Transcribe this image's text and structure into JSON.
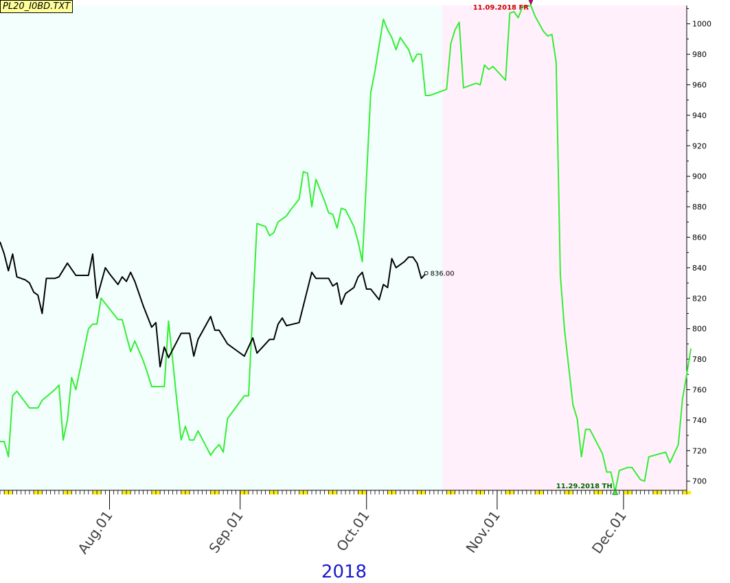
{
  "badge_text": "PL20_I0BD.TXT",
  "year_label": "2018",
  "colors": {
    "region_past": "#f3fffd",
    "region_future": "#fff0fb",
    "green_series": "#33ee33",
    "black_series": "#000000",
    "max_marker": "#cc0066",
    "week_tick": "#ffee00"
  },
  "chart_data": {
    "type": "line",
    "x_label": "",
    "y_label": "",
    "ylim": [
      694,
      1012
    ],
    "y_ticks": [
      700,
      720,
      740,
      760,
      780,
      800,
      820,
      840,
      860,
      880,
      900,
      920,
      940,
      960,
      980,
      1000
    ],
    "x_range": [
      "2018-07-06",
      "2018-12-16"
    ],
    "months": [
      {
        "label": "Aug.01",
        "date": "2018-08-01"
      },
      {
        "label": "Sep.01",
        "date": "2018-09-01"
      },
      {
        "label": "Oct.01",
        "date": "2018-10-01"
      },
      {
        "label": "Nov.01",
        "date": "2018-11-01"
      },
      {
        "label": "Dec.01",
        "date": "2018-12-01"
      }
    ],
    "shading": {
      "past_end": "2018-10-19",
      "future_end": "2018-12-16"
    },
    "series": [
      {
        "color": "#33ee33",
        "points": [
          [
            "2018-07-06",
            726
          ],
          [
            "2018-07-07",
            726
          ],
          [
            "2018-07-08",
            716
          ],
          [
            "2018-07-09",
            756
          ],
          [
            "2018-07-10",
            759
          ],
          [
            "2018-07-13",
            748
          ],
          [
            "2018-07-15",
            748
          ],
          [
            "2018-07-16",
            753
          ],
          [
            "2018-07-19",
            760
          ],
          [
            "2018-07-20",
            763
          ],
          [
            "2018-07-21",
            727
          ],
          [
            "2018-07-22",
            740
          ],
          [
            "2018-07-23",
            768
          ],
          [
            "2018-07-24",
            760
          ],
          [
            "2018-07-27",
            800
          ],
          [
            "2018-07-28",
            803
          ],
          [
            "2018-07-29",
            803
          ],
          [
            "2018-07-30",
            820
          ],
          [
            "2018-08-03",
            806
          ],
          [
            "2018-08-04",
            806
          ],
          [
            "2018-08-06",
            785
          ],
          [
            "2018-08-07",
            792
          ],
          [
            "2018-08-09",
            779
          ],
          [
            "2018-08-10",
            771
          ],
          [
            "2018-08-11",
            762
          ],
          [
            "2018-08-14",
            762
          ],
          [
            "2018-08-15",
            805
          ],
          [
            "2018-08-16",
            779
          ],
          [
            "2018-08-17",
            752
          ],
          [
            "2018-08-18",
            727
          ],
          [
            "2018-08-19",
            736
          ],
          [
            "2018-08-20",
            727
          ],
          [
            "2018-08-21",
            727
          ],
          [
            "2018-08-22",
            733
          ],
          [
            "2018-08-25",
            717
          ],
          [
            "2018-08-26",
            721
          ],
          [
            "2018-08-27",
            724
          ],
          [
            "2018-08-28",
            719
          ],
          [
            "2018-08-29",
            741
          ],
          [
            "2018-09-02",
            756
          ],
          [
            "2018-09-03",
            756
          ],
          [
            "2018-09-05",
            869
          ],
          [
            "2018-09-07",
            867
          ],
          [
            "2018-09-08",
            861
          ],
          [
            "2018-09-09",
            863
          ],
          [
            "2018-09-10",
            870
          ],
          [
            "2018-09-12",
            874
          ],
          [
            "2018-09-13",
            878
          ],
          [
            "2018-09-15",
            885
          ],
          [
            "2018-09-16",
            903
          ],
          [
            "2018-09-17",
            902
          ],
          [
            "2018-09-18",
            880
          ],
          [
            "2018-09-19",
            898
          ],
          [
            "2018-09-21",
            884
          ],
          [
            "2018-09-22",
            876
          ],
          [
            "2018-09-23",
            875
          ],
          [
            "2018-09-24",
            866
          ],
          [
            "2018-09-25",
            879
          ],
          [
            "2018-09-26",
            878
          ],
          [
            "2018-09-28",
            867
          ],
          [
            "2018-09-29",
            857
          ],
          [
            "2018-09-30",
            844
          ],
          [
            "2018-10-02",
            955
          ],
          [
            "2018-10-03",
            969
          ],
          [
            "2018-10-05",
            1003
          ],
          [
            "2018-10-06",
            996
          ],
          [
            "2018-10-07",
            991
          ],
          [
            "2018-10-08",
            983
          ],
          [
            "2018-10-09",
            991
          ],
          [
            "2018-10-11",
            983
          ],
          [
            "2018-10-12",
            975
          ],
          [
            "2018-10-13",
            980
          ],
          [
            "2018-10-14",
            980
          ],
          [
            "2018-10-15",
            953
          ],
          [
            "2018-10-16",
            953
          ],
          [
            "2018-10-20",
            957
          ],
          [
            "2018-10-21",
            987
          ],
          [
            "2018-10-22",
            996
          ],
          [
            "2018-10-23",
            1001
          ],
          [
            "2018-10-24",
            958
          ],
          [
            "2018-10-27",
            961
          ],
          [
            "2018-10-28",
            960
          ],
          [
            "2018-10-29",
            973
          ],
          [
            "2018-10-30",
            970
          ],
          [
            "2018-10-31",
            972
          ],
          [
            "2018-11-02",
            966
          ],
          [
            "2018-11-03",
            963
          ],
          [
            "2018-11-04",
            1007
          ],
          [
            "2018-11-05",
            1008
          ],
          [
            "2018-11-06",
            1004
          ],
          [
            "2018-11-07",
            1011
          ],
          [
            "2018-11-09",
            1012
          ],
          [
            "2018-11-10",
            1005
          ],
          [
            "2018-11-12",
            995
          ],
          [
            "2018-11-13",
            992
          ],
          [
            "2018-11-14",
            993
          ],
          [
            "2018-11-15",
            975
          ],
          [
            "2018-11-16",
            835
          ],
          [
            "2018-11-17",
            799
          ],
          [
            "2018-11-19",
            750
          ],
          [
            "2018-11-20",
            741
          ],
          [
            "2018-11-21",
            716
          ],
          [
            "2018-11-22",
            734
          ],
          [
            "2018-11-23",
            734
          ],
          [
            "2018-11-26",
            718
          ],
          [
            "2018-11-27",
            706
          ],
          [
            "2018-11-28",
            706
          ],
          [
            "2018-11-29",
            693
          ],
          [
            "2018-11-30",
            707
          ],
          [
            "2018-12-02",
            709
          ],
          [
            "2018-12-03",
            709
          ],
          [
            "2018-12-04",
            705
          ],
          [
            "2018-12-05",
            701
          ],
          [
            "2018-12-06",
            700
          ],
          [
            "2018-12-07",
            716
          ],
          [
            "2018-12-11",
            719
          ],
          [
            "2018-12-12",
            712
          ],
          [
            "2018-12-14",
            724
          ],
          [
            "2018-12-15",
            754
          ],
          [
            "2018-12-16",
            770
          ],
          [
            "2018-12-17",
            787
          ]
        ]
      },
      {
        "color": "#000000",
        "points": [
          [
            "2018-07-06",
            857
          ],
          [
            "2018-07-07",
            849
          ],
          [
            "2018-07-08",
            838
          ],
          [
            "2018-07-09",
            849
          ],
          [
            "2018-07-10",
            834
          ],
          [
            "2018-07-12",
            832
          ],
          [
            "2018-07-13",
            830
          ],
          [
            "2018-07-14",
            824
          ],
          [
            "2018-07-15",
            822
          ],
          [
            "2018-07-16",
            810
          ],
          [
            "2018-07-17",
            833
          ],
          [
            "2018-07-19",
            833
          ],
          [
            "2018-07-20",
            834
          ],
          [
            "2018-07-22",
            843
          ],
          [
            "2018-07-24",
            835
          ],
          [
            "2018-07-25",
            835
          ],
          [
            "2018-07-27",
            835
          ],
          [
            "2018-07-28",
            849
          ],
          [
            "2018-07-29",
            820
          ],
          [
            "2018-07-31",
            840
          ],
          [
            "2018-08-01",
            836
          ],
          [
            "2018-08-03",
            829
          ],
          [
            "2018-08-04",
            834
          ],
          [
            "2018-08-05",
            831
          ],
          [
            "2018-08-06",
            837
          ],
          [
            "2018-08-07",
            831
          ],
          [
            "2018-08-09",
            815
          ],
          [
            "2018-08-11",
            801
          ],
          [
            "2018-08-12",
            804
          ],
          [
            "2018-08-13",
            775
          ],
          [
            "2018-08-14",
            788
          ],
          [
            "2018-08-15",
            781
          ],
          [
            "2018-08-18",
            797
          ],
          [
            "2018-08-20",
            797
          ],
          [
            "2018-08-21",
            782
          ],
          [
            "2018-08-22",
            793
          ],
          [
            "2018-08-25",
            808
          ],
          [
            "2018-08-26",
            799
          ],
          [
            "2018-08-27",
            799
          ],
          [
            "2018-08-29",
            790
          ],
          [
            "2018-08-31",
            786
          ],
          [
            "2018-09-02",
            782
          ],
          [
            "2018-09-04",
            794
          ],
          [
            "2018-09-05",
            784
          ],
          [
            "2018-09-08",
            793
          ],
          [
            "2018-09-09",
            793
          ],
          [
            "2018-09-10",
            803
          ],
          [
            "2018-09-11",
            807
          ],
          [
            "2018-09-12",
            802
          ],
          [
            "2018-09-15",
            804
          ],
          [
            "2018-09-17",
            826
          ],
          [
            "2018-09-18",
            837
          ],
          [
            "2018-09-19",
            833
          ],
          [
            "2018-09-20",
            833
          ],
          [
            "2018-09-22",
            833
          ],
          [
            "2018-09-23",
            828
          ],
          [
            "2018-09-24",
            830
          ],
          [
            "2018-09-25",
            816
          ],
          [
            "2018-09-26",
            823
          ],
          [
            "2018-09-28",
            827
          ],
          [
            "2018-09-29",
            834
          ],
          [
            "2018-09-30",
            837
          ],
          [
            "2018-10-01",
            826
          ],
          [
            "2018-10-02",
            826
          ],
          [
            "2018-10-04",
            819
          ],
          [
            "2018-10-05",
            829
          ],
          [
            "2018-10-06",
            827
          ],
          [
            "2018-10-07",
            846
          ],
          [
            "2018-10-08",
            840
          ],
          [
            "2018-10-10",
            844
          ],
          [
            "2018-10-11",
            847
          ],
          [
            "2018-10-12",
            847
          ],
          [
            "2018-10-13",
            843
          ],
          [
            "2018-10-14",
            833
          ],
          [
            "2018-10-15",
            836
          ]
        ]
      }
    ],
    "annotations": [
      {
        "kind": "max",
        "text": "11.09.2018 FR",
        "date": "2018-11-09",
        "value": 1012
      },
      {
        "kind": "min",
        "text": "11.29.2018 TH",
        "date": "2018-11-29",
        "value": 693
      },
      {
        "kind": "last",
        "text": "836.00",
        "date": "2018-10-15",
        "value": 836
      }
    ]
  }
}
